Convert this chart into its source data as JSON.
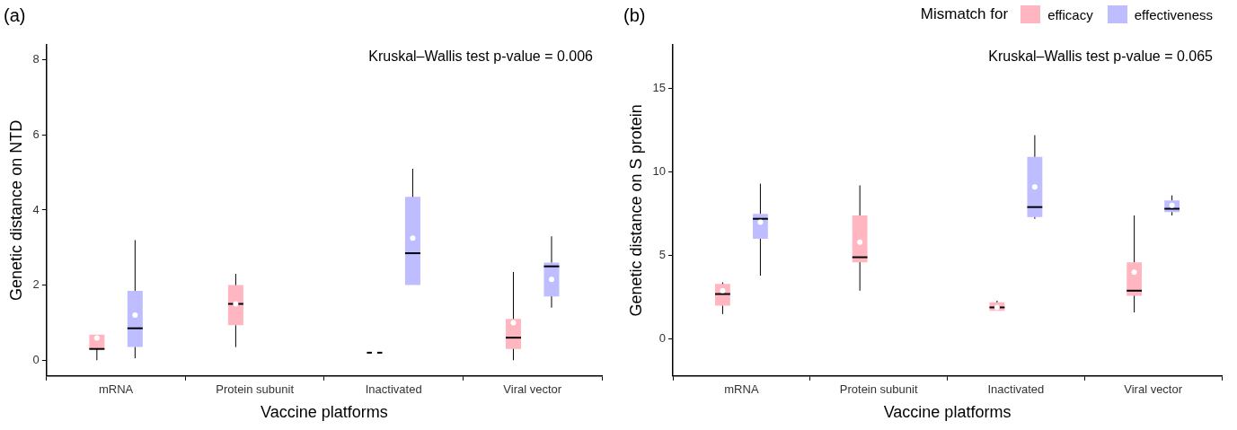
{
  "chart_data": [
    {
      "type": "box",
      "title": "(a)",
      "xlabel": "Vaccine platforms",
      "ylabel": "Genetic distance on NTD",
      "categories": [
        "mRNA",
        "Protein subunit",
        "Inactivated",
        "Viral vector"
      ],
      "ylim": [
        -0.42,
        8.4
      ],
      "yticks": [
        0,
        2,
        4,
        6,
        8
      ],
      "grid": false,
      "legend": false,
      "annotations": [
        "Kruskal–Wallis test p-value = 0.006"
      ],
      "series": [
        {
          "color": "#ffb6c1",
          "boxes": [
            {
              "low": 0,
              "q1": 0.3,
              "median": 0.3,
              "q3": 0.68,
              "high": 0.68,
              "mean": 0.59
            },
            {
              "low": 0.35,
              "q1": 0.93,
              "median": 1.5,
              "q3": 2.0,
              "high": 2.3,
              "mean": 1.5
            },
            {
              "low": 0.17,
              "q1": 0.18,
              "median": 0.2,
              "q3": 0.22,
              "high": 0.25,
              "mean": 0.2
            },
            {
              "low": 0,
              "q1": 0.3,
              "median": 0.6,
              "q3": 1.1,
              "high": 2.35,
              "mean": 1.0
            }
          ]
        },
        {
          "color": "#bdbdff",
          "boxes": [
            {
              "low": 0.05,
              "q1": 0.35,
              "median": 0.85,
              "q3": 1.85,
              "high": 3.2,
              "mean": 1.2
            },
            null,
            {
              "low": 2.0,
              "q1": 2.0,
              "median": 2.85,
              "q3": 4.35,
              "high": 5.1,
              "mean": 3.25
            },
            {
              "low": 1.4,
              "q1": 1.7,
              "median": 2.5,
              "q3": 2.6,
              "high": 3.3,
              "mean": 2.15
            }
          ]
        }
      ]
    },
    {
      "type": "box",
      "title": "(b)",
      "xlabel": "Vaccine platforms",
      "ylabel": "Genetic distance on S protein",
      "legend_title": "Mismatch for",
      "categories": [
        "mRNA",
        "Protein subunit",
        "Inactivated",
        "Viral vector"
      ],
      "ylim": [
        -2.2,
        17.6
      ],
      "yticks": [
        0,
        5,
        10,
        15
      ],
      "grid": false,
      "legend": "top right",
      "annotations": [
        "Kruskal–Wallis test p-value = 0.065"
      ],
      "series": [
        {
          "name": "efficacy",
          "color": "#ffb6c1",
          "boxes": [
            {
              "low": 1.5,
              "q1": 2.0,
              "median": 2.7,
              "q3": 3.3,
              "high": 3.4,
              "mean": 2.9
            },
            {
              "low": 2.9,
              "q1": 4.6,
              "median": 4.9,
              "q3": 7.4,
              "high": 9.2,
              "mean": 5.8
            },
            {
              "low": 1.7,
              "q1": 1.7,
              "median": 1.9,
              "q3": 2.2,
              "high": 2.3,
              "mean": 1.9
            },
            {
              "low": 1.6,
              "q1": 2.6,
              "median": 2.9,
              "q3": 4.6,
              "high": 7.4,
              "mean": 4.0
            }
          ]
        },
        {
          "name": "effectiveness",
          "color": "#bdbdff",
          "boxes": [
            {
              "low": 3.8,
              "q1": 6.0,
              "median": 7.2,
              "q3": 7.5,
              "high": 9.3,
              "mean": 7.0
            },
            null,
            {
              "low": 7.2,
              "q1": 7.3,
              "median": 7.9,
              "q3": 10.9,
              "high": 12.2,
              "mean": 9.1
            },
            {
              "low": 7.4,
              "q1": 7.6,
              "median": 7.8,
              "q3": 8.3,
              "high": 8.6,
              "mean": 8.0
            }
          ]
        }
      ]
    }
  ]
}
